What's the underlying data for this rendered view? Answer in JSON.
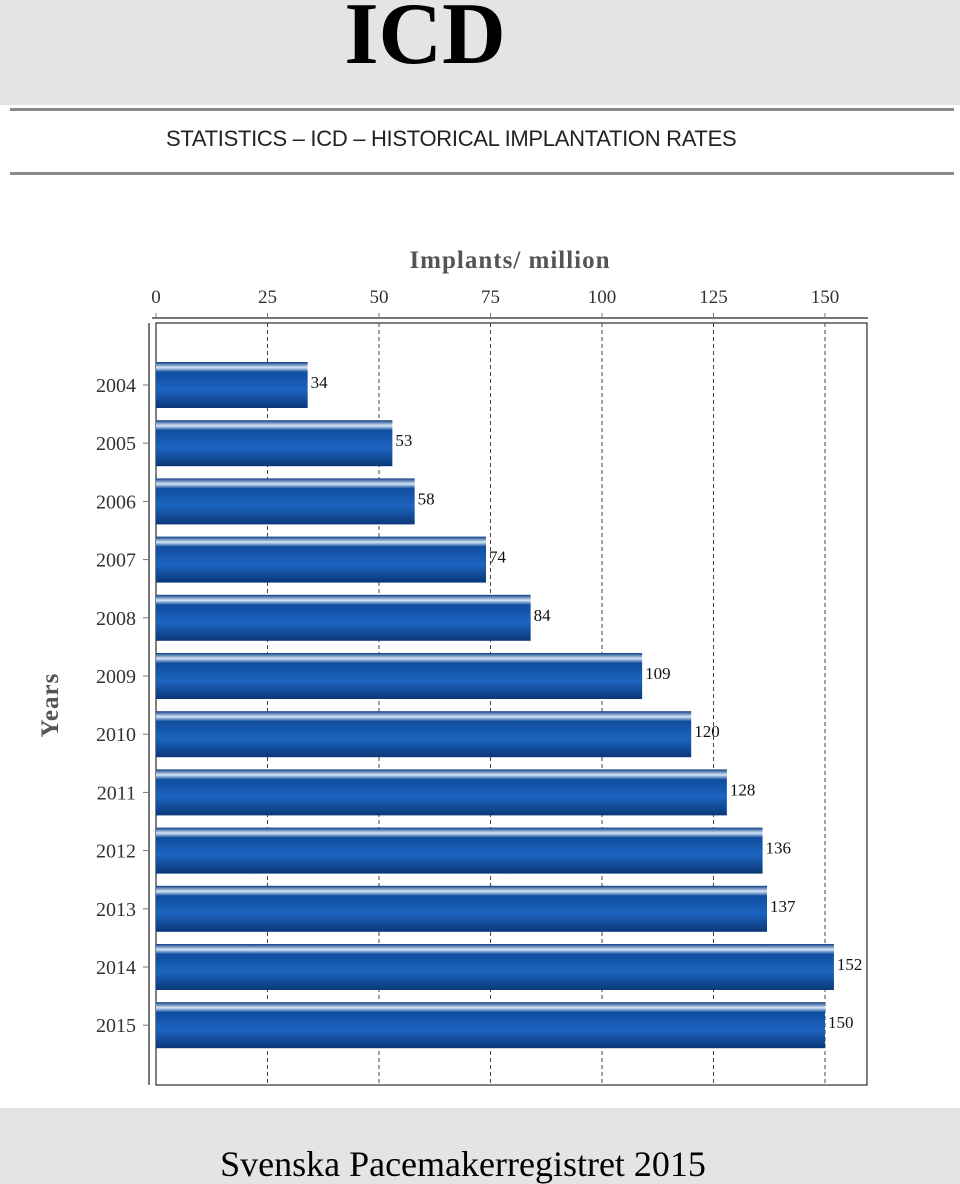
{
  "header": {
    "title": "ICD"
  },
  "panel": {
    "title": "STATISTICS – ICD – HISTORICAL IMPLANTATION RATES"
  },
  "footer": {
    "text": "Svenska Pacemakerregistret 2015"
  },
  "colors": {
    "bar_dark": "#0b3d84",
    "bar_mid": "#1d64c0",
    "bar_highlight": "#d6e6f7",
    "grid": "#555555"
  },
  "chart_data": {
    "type": "bar",
    "orientation": "horizontal",
    "title": "",
    "xlabel": "Implants/ million",
    "ylabel": "Years",
    "x_axis_position": "top",
    "xlim": [
      0,
      160
    ],
    "xticks": [
      0,
      25,
      50,
      75,
      100,
      125,
      150
    ],
    "grid": "vertical dashed",
    "legend": "none",
    "categories": [
      "2004",
      "2005",
      "2006",
      "2007",
      "2008",
      "2009",
      "2010",
      "2011",
      "2012",
      "2013",
      "2014",
      "2015"
    ],
    "values": [
      34,
      53,
      58,
      74,
      84,
      109,
      120,
      128,
      136,
      137,
      152,
      150
    ]
  }
}
